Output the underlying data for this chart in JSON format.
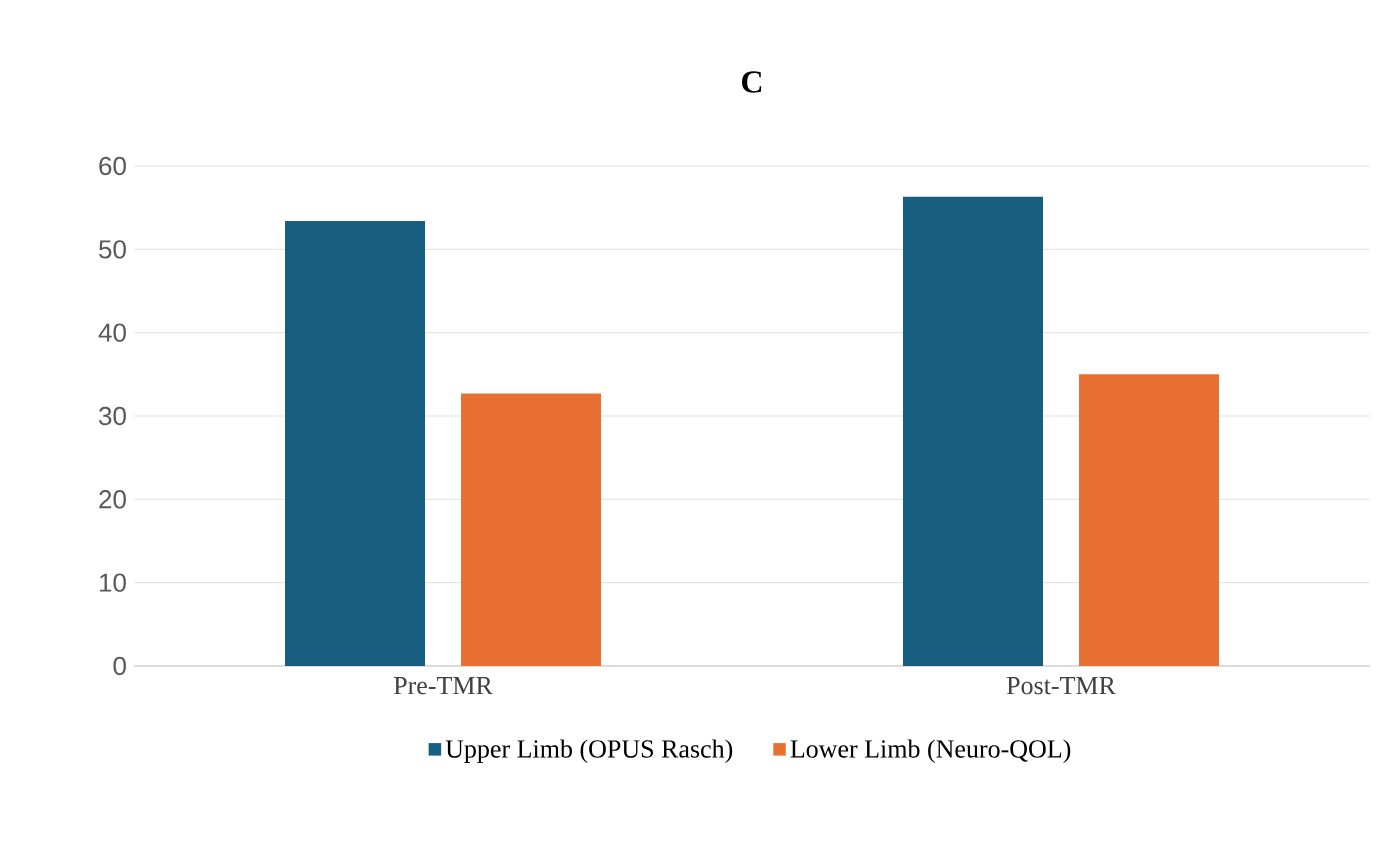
{
  "chart_data": {
    "type": "bar",
    "title": "C",
    "categories": [
      "Pre-TMR",
      "Post-TMR"
    ],
    "series": [
      {
        "name": "Upper Limb (OPUS Rasch)",
        "color": "#175e81",
        "values": [
          53.4,
          56.3
        ]
      },
      {
        "name": "Lower Limb (Neuro-QOL)",
        "color": "#e87032",
        "values": [
          32.7,
          35.0
        ]
      }
    ],
    "ylim": [
      0,
      60
    ],
    "yticks": [
      0,
      10,
      20,
      30,
      40,
      50,
      60
    ],
    "grid": "y",
    "legend": "bottom"
  }
}
